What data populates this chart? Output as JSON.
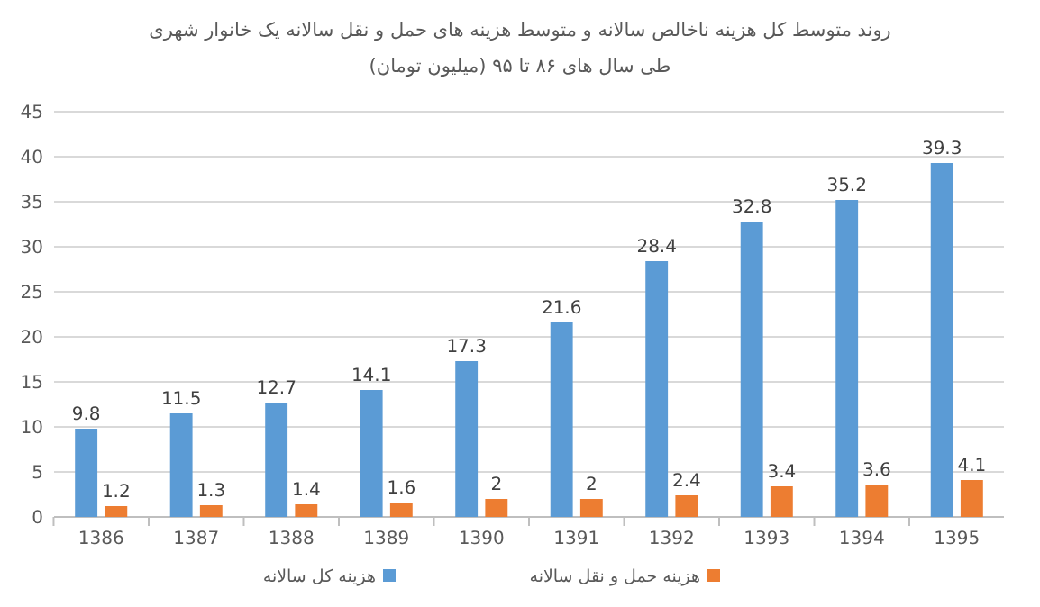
{
  "chart_data": {
    "type": "bar",
    "title": "روند متوسط کل هزینه ناخالص سالانه و متوسط هزینه های حمل و نقل سالانه یک خانوار شهری",
    "subtitle": "طی سال های ۸۶ تا ۹۵ (میلیون تومان)",
    "categories": [
      "1386",
      "1387",
      "1388",
      "1389",
      "1390",
      "1391",
      "1392",
      "1393",
      "1394",
      "1395"
    ],
    "series": [
      {
        "name": "هزینه کل سالانه",
        "color": "#5b9bd5",
        "values": [
          9.8,
          11.5,
          12.7,
          14.1,
          17.3,
          21.6,
          28.4,
          32.8,
          35.2,
          39.3
        ]
      },
      {
        "name": "هزینه حمل و نقل سالانه",
        "color": "#ed7d31",
        "values": [
          1.2,
          1.3,
          1.4,
          1.6,
          2,
          2,
          2.4,
          3.4,
          3.6,
          4.1
        ]
      }
    ],
    "ylim": [
      0,
      45
    ],
    "yticks": [
      0,
      5,
      10,
      15,
      20,
      25,
      30,
      35,
      40,
      45
    ],
    "grid": "y",
    "legend": "bottom",
    "data_labels": true
  }
}
